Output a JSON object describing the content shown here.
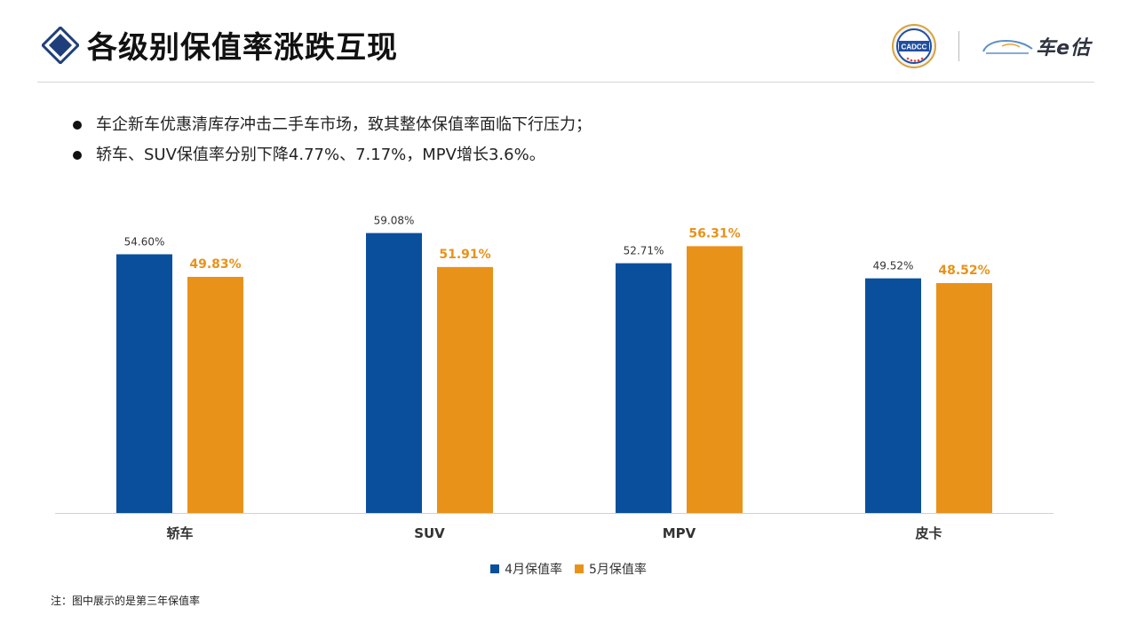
{
  "header": {
    "title": "各级别保值率涨跌互现",
    "logo_cadcc_text": "CADCC",
    "logo_brand_text": "车e估"
  },
  "bullets": [
    "车企新车优惠清库存冲击二手车市场，致其整体保值率面临下行压力；",
    "轿车、SUV保值率分别下降4.77%、7.17%，MPV增长3.6%。"
  ],
  "colors": {
    "april": "#0a4f9c",
    "may": "#e8921a",
    "title_icon": "#1f3f7a"
  },
  "chart_data": {
    "type": "bar",
    "categories": [
      "轿车",
      "SUV",
      "MPV",
      "皮卡"
    ],
    "series": [
      {
        "name": "4月保值率",
        "values": [
          54.6,
          59.08,
          52.71,
          49.52
        ],
        "labels": [
          "54.60%",
          "59.08%",
          "52.71%",
          "49.52%"
        ]
      },
      {
        "name": "5月保值率",
        "values": [
          49.83,
          51.91,
          56.31,
          48.52
        ],
        "labels": [
          "49.83%",
          "51.91%",
          "56.31%",
          "48.52%"
        ]
      }
    ],
    "ylim": [
      0,
      62
    ],
    "grid": false,
    "legend_position": "bottom"
  },
  "footnote": "注：图中展示的是第三年保值率"
}
